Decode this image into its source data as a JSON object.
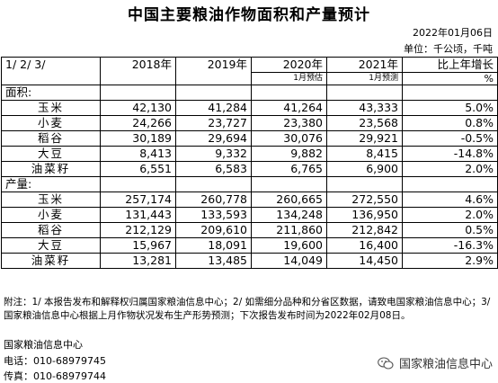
{
  "header": {
    "title": "中国主要粮油作物面积和产量预计",
    "date": "2022年01月06日",
    "unit": "单位：千公顷，千吨"
  },
  "columns": {
    "label": "1/ 2/ 3/",
    "y2018": "2018年",
    "y2019": "2019年",
    "y2020": "2020年",
    "y2021": "2021年",
    "change": "比上年增长",
    "sub2020": "1月预估",
    "sub2021": "1月预测",
    "pct": "%"
  },
  "area": {
    "section_label": "面积:",
    "rows": [
      {
        "crop": "玉米",
        "v2018": "42,130",
        "v2019": "41,284",
        "v2020": "41,264",
        "v2021": "43,333",
        "chg": "5.0%"
      },
      {
        "crop": "小麦",
        "v2018": "24,266",
        "v2019": "23,727",
        "v2020": "23,380",
        "v2021": "23,568",
        "chg": "0.8%"
      },
      {
        "crop": "稻谷",
        "v2018": "30,189",
        "v2019": "29,694",
        "v2020": "30,076",
        "v2021": "29,921",
        "chg": "-0.5%"
      },
      {
        "crop": "大豆",
        "v2018": "8,413",
        "v2019": "9,332",
        "v2020": "9,882",
        "v2021": "8,415",
        "chg": "-14.8%"
      },
      {
        "crop": "油菜籽",
        "v2018": "6,551",
        "v2019": "6,583",
        "v2020": "6,765",
        "v2021": "6,900",
        "chg": "2.0%"
      }
    ]
  },
  "output": {
    "section_label": "产量:",
    "rows": [
      {
        "crop": "玉米",
        "v2018": "257,174",
        "v2019": "260,778",
        "v2020": "260,665",
        "v2021": "272,550",
        "chg": "4.6%"
      },
      {
        "crop": "小麦",
        "v2018": "131,443",
        "v2019": "133,593",
        "v2020": "134,248",
        "v2021": "136,950",
        "chg": "2.0%"
      },
      {
        "crop": "稻谷",
        "v2018": "212,129",
        "v2019": "209,610",
        "v2020": "211,860",
        "v2021": "212,842",
        "chg": "0.5%"
      },
      {
        "crop": "大豆",
        "v2018": "15,967",
        "v2019": "18,091",
        "v2020": "19,600",
        "v2021": "16,400",
        "chg": "-16.3%"
      },
      {
        "crop": "油菜籽",
        "v2018": "13,281",
        "v2019": "13,485",
        "v2020": "14,049",
        "v2021": "14,450",
        "chg": "2.9%"
      }
    ]
  },
  "notes": "附注：1/ 本报告发布和解释权归属国家粮油信息中心；2/ 如需细分品种和分省区数据，请致电国家粮油信息中心；3/国家粮油信息中心根据上月作物状况发布生产形势预测；下次报告发布时间为2022年02月08日。",
  "footer": {
    "org": "国家粮油信息中心",
    "tel": "电话：010-68979745",
    "fax": "传真：010-68979744"
  },
  "watermark": {
    "text": "国家粮油信息中心",
    "icon": "wechat-icon"
  }
}
